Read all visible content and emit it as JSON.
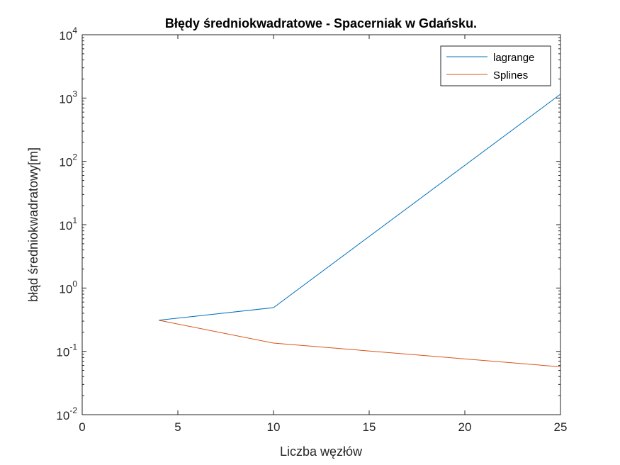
{
  "chart_data": {
    "type": "line",
    "title": "Błędy średniokwadratowe - Spacerniak w Gdańsku.",
    "xlabel": "Liczba węzłów",
    "ylabel": "błąd średniokwadratowy[m]",
    "xlim": [
      0,
      25
    ],
    "ylim": [
      0.01,
      10000
    ],
    "yscale": "log",
    "xticks": [
      0,
      5,
      10,
      15,
      20,
      25
    ],
    "yticks": [
      {
        "value": 0.01,
        "base": "10",
        "exp": "-2"
      },
      {
        "value": 0.1,
        "base": "10",
        "exp": "-1"
      },
      {
        "value": 1,
        "base": "10",
        "exp": "0"
      },
      {
        "value": 10,
        "base": "10",
        "exp": "1"
      },
      {
        "value": 100,
        "base": "10",
        "exp": "2"
      },
      {
        "value": 1000,
        "base": "10",
        "exp": "3"
      },
      {
        "value": 10000,
        "base": "10",
        "exp": "4"
      }
    ],
    "grid": false,
    "legend_position": "top-right",
    "series": [
      {
        "name": "lagrange",
        "color": "#0072BD",
        "x": [
          4,
          10,
          25
        ],
        "y": [
          0.31,
          0.49,
          1150
        ]
      },
      {
        "name": "Splines",
        "color": "#D95319",
        "x": [
          4,
          10,
          25
        ],
        "y": [
          0.31,
          0.135,
          0.057
        ]
      }
    ]
  }
}
